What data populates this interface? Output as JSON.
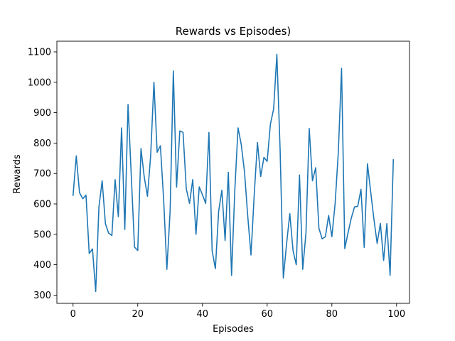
{
  "chart_data": {
    "type": "line",
    "title": "Rewards vs Episodes)",
    "xlabel": "Episodes",
    "ylabel": "Rewards",
    "xlim": [
      -5,
      104
    ],
    "ylim": [
      273,
      1135
    ],
    "xticks": [
      0,
      20,
      40,
      60,
      80,
      100
    ],
    "yticks": [
      300,
      400,
      500,
      600,
      700,
      800,
      900,
      1000,
      1100
    ],
    "grid": false,
    "legend": "none",
    "series": [
      {
        "color": "#1f77b4",
        "x": [
          0,
          1,
          2,
          3,
          4,
          5,
          6,
          7,
          8,
          9,
          10,
          11,
          12,
          13,
          14,
          15,
          16,
          17,
          18,
          19,
          20,
          21,
          22,
          23,
          24,
          25,
          26,
          27,
          28,
          29,
          30,
          31,
          32,
          33,
          34,
          35,
          36,
          37,
          38,
          39,
          40,
          41,
          42,
          43,
          44,
          45,
          46,
          47,
          48,
          49,
          50,
          51,
          52,
          53,
          54,
          55,
          56,
          57,
          58,
          59,
          60,
          61,
          62,
          63,
          64,
          65,
          66,
          67,
          68,
          69,
          70,
          71,
          72,
          73,
          74,
          75,
          76,
          77,
          78,
          79,
          80,
          81,
          82,
          83,
          84,
          85,
          86,
          87,
          88,
          89,
          90,
          91,
          92,
          93,
          94,
          95,
          96,
          97,
          98,
          99
        ],
        "values": [
          628,
          758,
          637,
          617,
          629,
          437,
          452,
          312,
          590,
          676,
          535,
          504,
          496,
          680,
          558,
          850,
          516,
          927,
          692,
          458,
          447,
          782,
          689,
          625,
          760,
          1000,
          770,
          791,
          615,
          385,
          575,
          1037,
          655,
          840,
          835,
          650,
          602,
          680,
          500,
          656,
          630,
          602,
          835,
          445,
          387,
          575,
          645,
          480,
          704,
          365,
          645,
          850,
          795,
          705,
          560,
          432,
          630,
          802,
          690,
          753,
          740,
          862,
          912,
          1092,
          780,
          356,
          468,
          568,
          447,
          400,
          695,
          385,
          505,
          848,
          676,
          719,
          520,
          485,
          492,
          562,
          492,
          600,
          770,
          1046,
          453,
          505,
          553,
          590,
          592,
          648,
          457,
          732,
          640,
          550,
          470,
          536,
          414,
          535,
          365,
          745
        ]
      }
    ]
  }
}
